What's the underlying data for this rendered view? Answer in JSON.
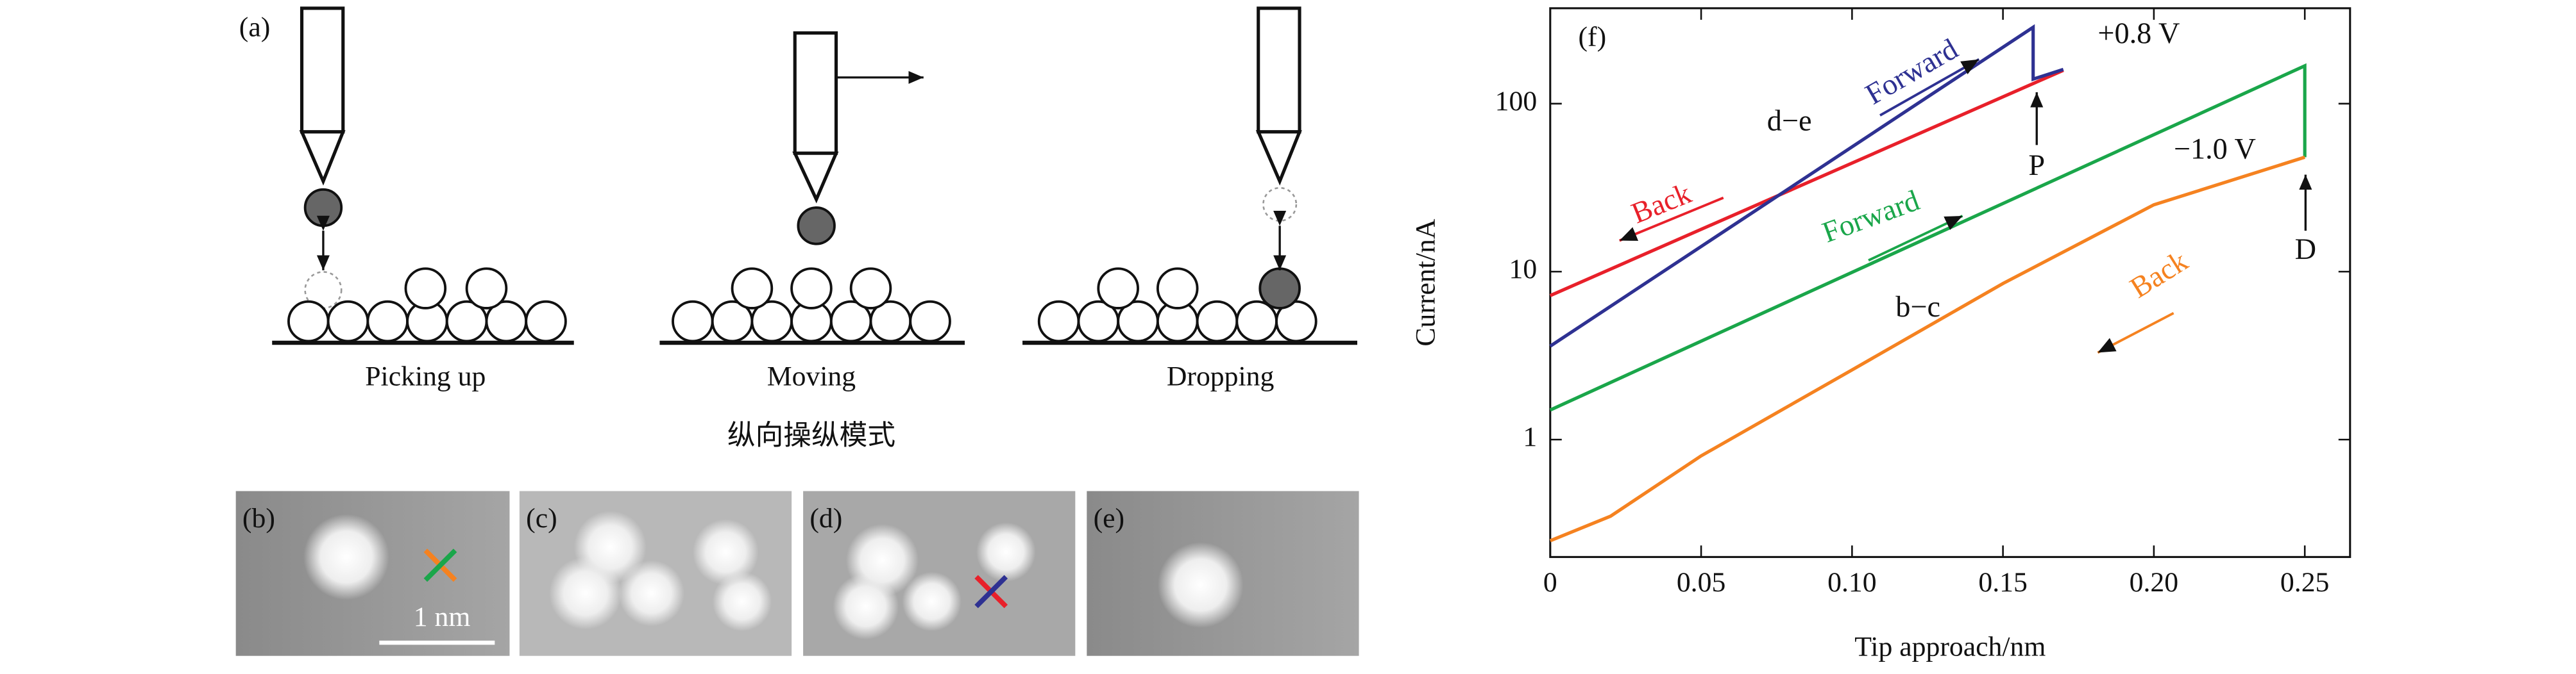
{
  "panel_a": {
    "label": "(a)",
    "steps": [
      "Picking up",
      "Moving",
      "Dropping"
    ],
    "caption": "纵向操纵模式"
  },
  "images": [
    {
      "label": "(b)"
    },
    {
      "label": "(c)"
    },
    {
      "label": "(d)"
    },
    {
      "label": "(e)"
    }
  ],
  "scale_bar": "1 nm",
  "chart_data": {
    "type": "line",
    "panel_label": "(f)",
    "x_label": "Tip approach/nm",
    "y_label": "Current/nA",
    "log_y": true,
    "xlim": [
      0,
      0.265
    ],
    "ylim": [
      0.2,
      370
    ],
    "xticks": [
      0,
      0.05,
      {
        "value": 0.1,
        "label": "0.10"
      },
      0.15,
      {
        "value": 0.2,
        "label": "0.20"
      },
      0.25
    ],
    "yticks": [
      1,
      10,
      100
    ],
    "series": [
      {
        "name": "Back",
        "color": "#e8202a",
        "x": [
          0,
          0.17
        ],
        "values": [
          7.2,
          158
        ]
      },
      {
        "name": "Forward",
        "color": "#2e3192",
        "x": [
          0,
          0.16,
          0.16,
          0.17
        ],
        "values": [
          3.6,
          285,
          140,
          160
        ]
      },
      {
        "name": "Forward",
        "color": "#1aa64a",
        "x": [
          0,
          0.25,
          0.25
        ],
        "values": [
          1.5,
          168,
          48
        ]
      },
      {
        "name": "Back",
        "color": "#f58220",
        "x": [
          0,
          0.02,
          0.05,
          0.1,
          0.15,
          0.2,
          0.25
        ],
        "values": [
          0.25,
          0.35,
          0.8,
          2.6,
          8.5,
          25,
          48
        ]
      }
    ],
    "annotations": [
      "d−e",
      "+0.8 V",
      "P",
      "−1.0 V",
      "D",
      "b−c"
    ]
  }
}
